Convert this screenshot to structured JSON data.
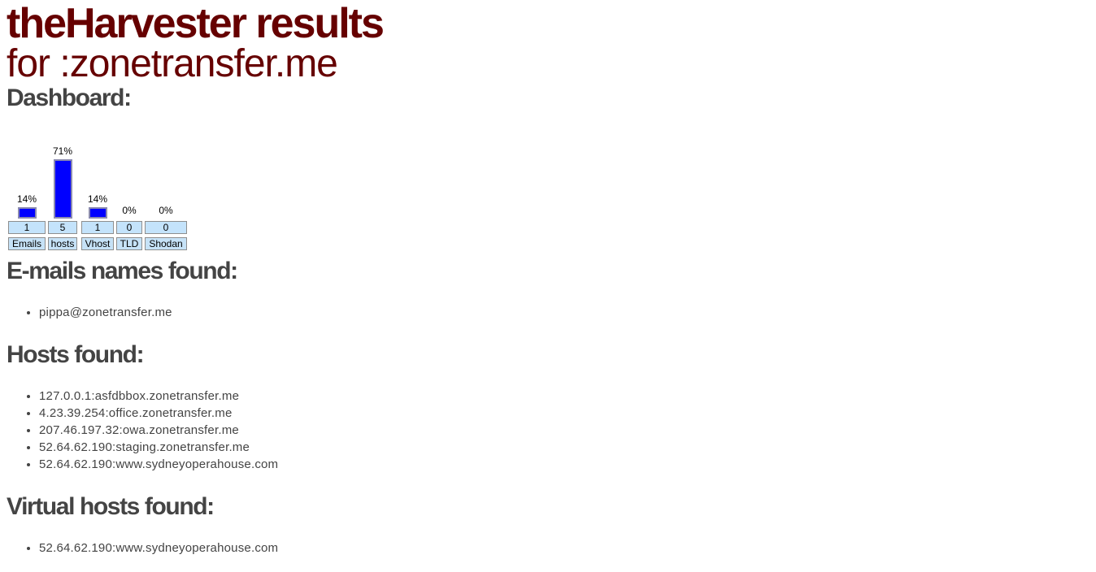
{
  "header": {
    "title": "theHarvester results",
    "subtitle": "for :zonetransfer.me"
  },
  "dashboard": {
    "heading": "Dashboard:"
  },
  "chart_data": {
    "type": "bar",
    "categories": [
      "Emails",
      "hosts",
      "Vhost",
      "TLD",
      "Shodan"
    ],
    "values": [
      1,
      5,
      1,
      0,
      0
    ],
    "percent_labels": [
      "14%",
      "71%",
      "14%",
      "0%",
      "0%"
    ],
    "percent_values": [
      14,
      71,
      14,
      0,
      0
    ],
    "value_labels": [
      "1",
      "5",
      "1",
      "0",
      "0"
    ],
    "ylim": [
      0,
      100
    ],
    "grid": false,
    "colors": {
      "bar": "#0000ff",
      "bar_border": "#8a8ab0",
      "cell": "#c4e3fb"
    }
  },
  "emails": {
    "heading": "E-mails names found:",
    "items": [
      "pippa@zonetransfer.me"
    ]
  },
  "hosts": {
    "heading": "Hosts found:",
    "items": [
      "127.0.0.1:asfdbbox.zonetransfer.me",
      "4.23.39.254:office.zonetransfer.me",
      "207.46.197.32:owa.zonetransfer.me",
      "52.64.62.190:staging.zonetransfer.me",
      "52.64.62.190:www.sydneyoperahouse.com"
    ]
  },
  "vhosts": {
    "heading": "Virtual hosts found:",
    "items": [
      "52.64.62.190:www.sydneyoperahouse.com"
    ]
  },
  "colors": {
    "title": "#660000",
    "text": "#444444"
  }
}
